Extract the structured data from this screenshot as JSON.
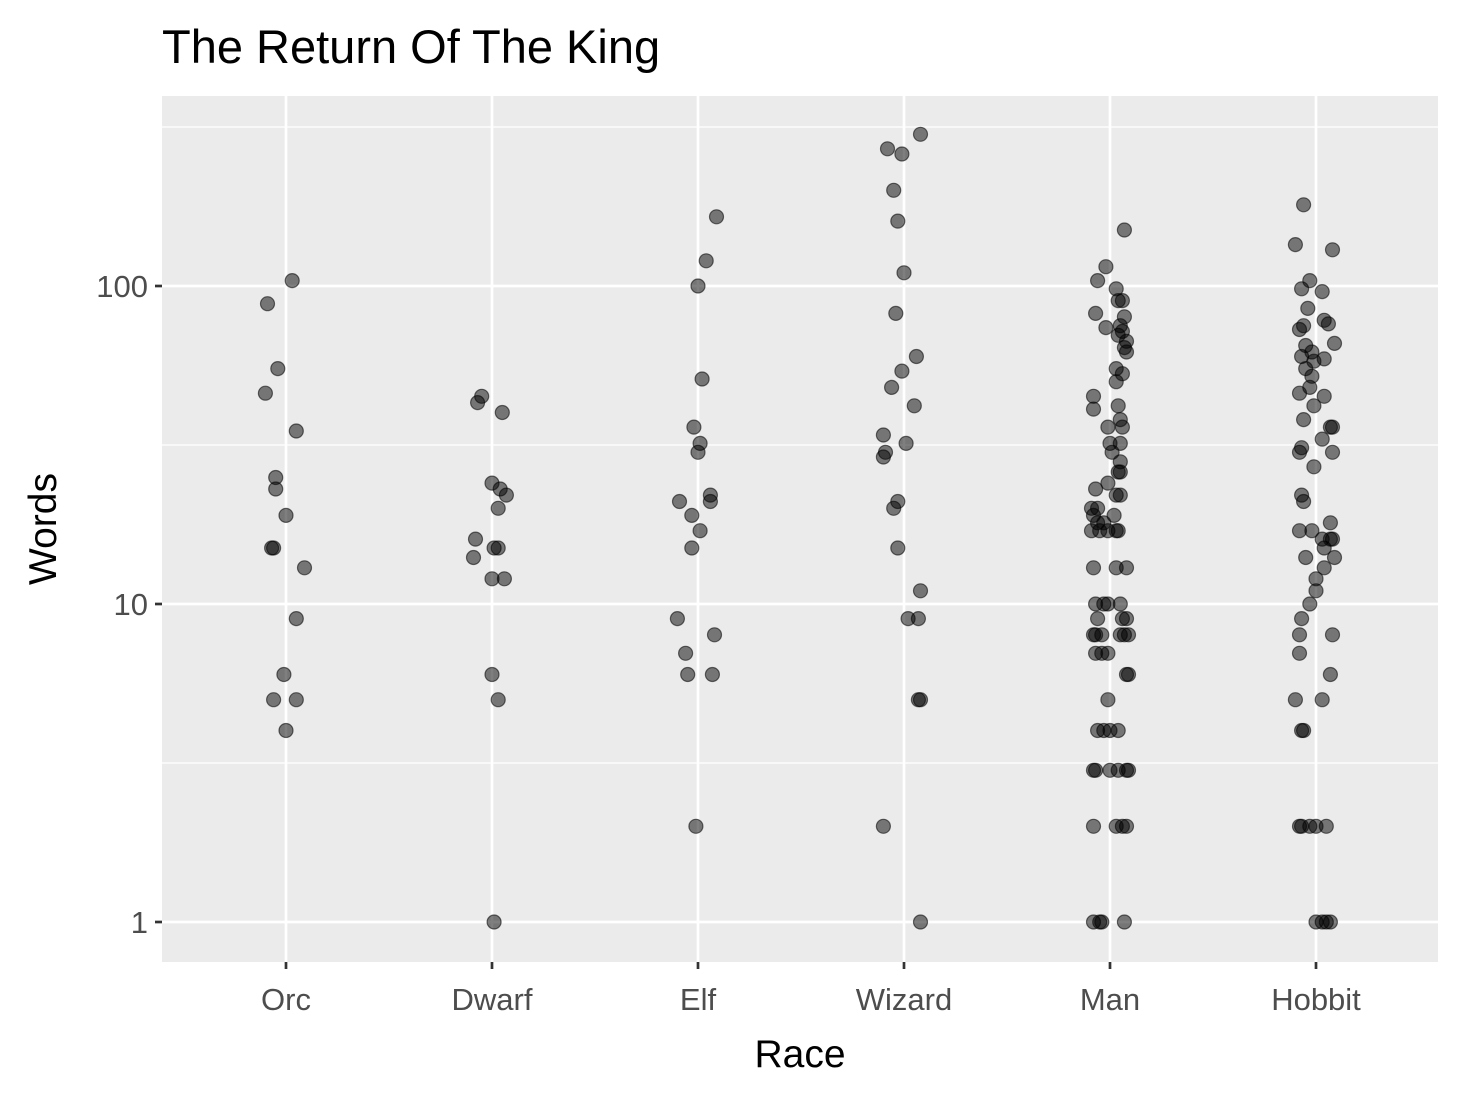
{
  "chart_data": {
    "type": "scatter",
    "title": "The Return Of The King",
    "xlabel": "Race",
    "ylabel": "Words",
    "y_scale": "log10",
    "ylim": [
      0.88,
      400
    ],
    "categories": [
      "Orc",
      "Dwarf",
      "Elf",
      "Wizard",
      "Man",
      "Hobbit"
    ],
    "y_ticks": [
      {
        "value": 1,
        "label": "1"
      },
      {
        "value": 10,
        "label": "10"
      },
      {
        "value": 100,
        "label": "100"
      }
    ],
    "grid": true,
    "legend": "none",
    "point_color": "#000000",
    "point_alpha": 0.5,
    "panel_color": "#EBEBEB",
    "points": {
      "Orc": [
        [
          -0.09,
          88
        ],
        [
          0.03,
          104
        ],
        [
          -0.1,
          46
        ],
        [
          -0.04,
          55
        ],
        [
          0.05,
          35
        ],
        [
          -0.05,
          25
        ],
        [
          -0.05,
          23
        ],
        [
          0,
          19
        ],
        [
          -0.07,
          15
        ],
        [
          -0.06,
          15
        ],
        [
          0.09,
          13
        ],
        [
          0.05,
          9
        ],
        [
          -0.01,
          6
        ],
        [
          -0.06,
          5
        ],
        [
          0.05,
          5
        ],
        [
          0,
          4
        ]
      ],
      "Dwarf": [
        [
          -0.07,
          43
        ],
        [
          -0.05,
          45
        ],
        [
          0.05,
          40
        ],
        [
          0,
          24
        ],
        [
          0.04,
          23
        ],
        [
          0.07,
          22
        ],
        [
          0.03,
          20
        ],
        [
          -0.08,
          16
        ],
        [
          -0.09,
          14
        ],
        [
          0.01,
          15
        ],
        [
          0.03,
          15
        ],
        [
          0,
          12
        ],
        [
          0.06,
          12
        ],
        [
          0,
          6
        ],
        [
          0.03,
          5
        ],
        [
          0.01,
          1
        ]
      ],
      "Elf": [
        [
          0.09,
          165
        ],
        [
          0.04,
          120
        ],
        [
          0,
          100
        ],
        [
          0.02,
          51
        ],
        [
          -0.02,
          36
        ],
        [
          0.01,
          32
        ],
        [
          0,
          30
        ],
        [
          -0.09,
          21
        ],
        [
          0.06,
          22
        ],
        [
          0.06,
          21
        ],
        [
          -0.03,
          19
        ],
        [
          0.01,
          17
        ],
        [
          -0.03,
          15
        ],
        [
          -0.1,
          9
        ],
        [
          -0.06,
          7
        ],
        [
          -0.05,
          6
        ],
        [
          0.07,
          6
        ],
        [
          0.08,
          8
        ],
        [
          -0.01,
          2
        ]
      ],
      "Wizard": [
        [
          -0.08,
          270
        ],
        [
          -0.01,
          260
        ],
        [
          0.08,
          300
        ],
        [
          -0.05,
          200
        ],
        [
          -0.03,
          160
        ],
        [
          0,
          110
        ],
        [
          -0.04,
          82
        ],
        [
          0.06,
          60
        ],
        [
          -0.01,
          54
        ],
        [
          -0.06,
          48
        ],
        [
          0.05,
          42
        ],
        [
          0.01,
          32
        ],
        [
          -0.1,
          34
        ],
        [
          -0.09,
          30
        ],
        [
          -0.1,
          29
        ],
        [
          -0.03,
          21
        ],
        [
          -0.05,
          20
        ],
        [
          -0.03,
          15
        ],
        [
          0.08,
          11
        ],
        [
          0.02,
          9
        ],
        [
          0.07,
          9
        ],
        [
          0.07,
          5
        ],
        [
          0.08,
          5
        ],
        [
          -0.1,
          2
        ],
        [
          0.08,
          1
        ]
      ],
      "Man": [
        [
          0.07,
          150
        ],
        [
          -0.02,
          115
        ],
        [
          -0.06,
          104
        ],
        [
          0.03,
          98
        ],
        [
          0.04,
          90
        ],
        [
          0.06,
          90
        ],
        [
          -0.07,
          82
        ],
        [
          0.07,
          80
        ],
        [
          -0.02,
          74
        ],
        [
          0.05,
          75
        ],
        [
          0.06,
          72
        ],
        [
          0.04,
          70
        ],
        [
          0.08,
          67
        ],
        [
          0.07,
          64
        ],
        [
          0.08,
          62
        ],
        [
          0.03,
          55
        ],
        [
          0.06,
          53
        ],
        [
          0.03,
          50
        ],
        [
          -0.08,
          45
        ],
        [
          -0.08,
          41
        ],
        [
          0.04,
          42
        ],
        [
          0.05,
          38
        ],
        [
          -0.01,
          36
        ],
        [
          0.06,
          36
        ],
        [
          0,
          32
        ],
        [
          0.05,
          32
        ],
        [
          0.01,
          30
        ],
        [
          0.05,
          28
        ],
        [
          0.04,
          26
        ],
        [
          0.05,
          26
        ],
        [
          -0.01,
          24
        ],
        [
          -0.07,
          23
        ],
        [
          0.03,
          22
        ],
        [
          0.05,
          22
        ],
        [
          -0.06,
          20
        ],
        [
          -0.09,
          20
        ],
        [
          -0.08,
          19
        ],
        [
          0.02,
          19
        ],
        [
          -0.06,
          18
        ],
        [
          -0.03,
          18
        ],
        [
          -0.05,
          17
        ],
        [
          0.03,
          17
        ],
        [
          -0.09,
          17
        ],
        [
          -0.01,
          17
        ],
        [
          0.04,
          17
        ],
        [
          -0.08,
          13
        ],
        [
          0.03,
          13
        ],
        [
          0.08,
          13
        ],
        [
          -0.07,
          10
        ],
        [
          -0.03,
          10
        ],
        [
          -0.01,
          10
        ],
        [
          0.05,
          10
        ],
        [
          -0.06,
          9
        ],
        [
          0.06,
          9
        ],
        [
          0.08,
          9
        ],
        [
          -0.08,
          8
        ],
        [
          -0.07,
          8
        ],
        [
          -0.04,
          8
        ],
        [
          0.05,
          8
        ],
        [
          0.07,
          8
        ],
        [
          0.09,
          8
        ],
        [
          -0.07,
          7
        ],
        [
          -0.04,
          7
        ],
        [
          -0.01,
          7
        ],
        [
          0.08,
          6
        ],
        [
          0.09,
          6
        ],
        [
          -0.01,
          5
        ],
        [
          -0.06,
          4
        ],
        [
          -0.03,
          4
        ],
        [
          0,
          4
        ],
        [
          0.04,
          4
        ],
        [
          -0.08,
          3
        ],
        [
          -0.07,
          3
        ],
        [
          0,
          3
        ],
        [
          0.04,
          3
        ],
        [
          0.09,
          3
        ],
        [
          0.08,
          3
        ],
        [
          -0.08,
          2
        ],
        [
          0.03,
          2
        ],
        [
          0.06,
          2
        ],
        [
          0.08,
          2
        ],
        [
          -0.08,
          1
        ],
        [
          -0.05,
          1
        ],
        [
          -0.04,
          1
        ],
        [
          0.07,
          1
        ]
      ],
      "Hobbit": [
        [
          -0.06,
          180
        ],
        [
          -0.1,
          135
        ],
        [
          0.08,
          130
        ],
        [
          -0.03,
          104
        ],
        [
          -0.07,
          98
        ],
        [
          0.03,
          96
        ],
        [
          -0.04,
          85
        ],
        [
          -0.06,
          75
        ],
        [
          0.04,
          78
        ],
        [
          0.06,
          76
        ],
        [
          -0.08,
          73
        ],
        [
          0.09,
          66
        ],
        [
          -0.02,
          62
        ],
        [
          -0.05,
          65
        ],
        [
          0.04,
          59
        ],
        [
          -0.07,
          60
        ],
        [
          -0.01,
          58
        ],
        [
          -0.05,
          55
        ],
        [
          -0.02,
          52
        ],
        [
          -0.03,
          48
        ],
        [
          -0.08,
          46
        ],
        [
          0.04,
          45
        ],
        [
          -0.01,
          42
        ],
        [
          -0.06,
          38
        ],
        [
          0.07,
          36
        ],
        [
          0.08,
          36
        ],
        [
          0.03,
          33
        ],
        [
          -0.08,
          30
        ],
        [
          -0.07,
          31
        ],
        [
          0.08,
          30
        ],
        [
          -0.01,
          27
        ],
        [
          -0.07,
          22
        ],
        [
          -0.06,
          21
        ],
        [
          0.07,
          18
        ],
        [
          -0.02,
          17
        ],
        [
          -0.08,
          17
        ],
        [
          0.03,
          16
        ],
        [
          0.07,
          16
        ],
        [
          0.08,
          16
        ],
        [
          0.04,
          15
        ],
        [
          -0.05,
          14
        ],
        [
          0.09,
          14
        ],
        [
          0.04,
          13
        ],
        [
          0,
          12
        ],
        [
          0,
          11
        ],
        [
          -0.03,
          10
        ],
        [
          -0.07,
          9
        ],
        [
          -0.08,
          8
        ],
        [
          0.08,
          8
        ],
        [
          -0.08,
          7
        ],
        [
          0.07,
          6
        ],
        [
          -0.1,
          5
        ],
        [
          0.03,
          5
        ],
        [
          -0.07,
          4
        ],
        [
          -0.06,
          4
        ],
        [
          -0.08,
          2
        ],
        [
          -0.07,
          2
        ],
        [
          -0.03,
          2
        ],
        [
          0,
          2
        ],
        [
          0.05,
          2
        ],
        [
          0,
          1
        ],
        [
          0.03,
          1
        ],
        [
          0.05,
          1
        ],
        [
          0.07,
          1
        ]
      ]
    }
  }
}
